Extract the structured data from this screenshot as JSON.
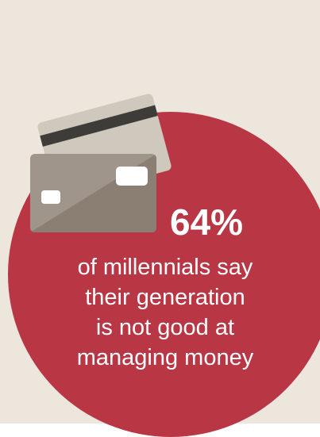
{
  "colors": {
    "background": "#ede6dc",
    "circle": "#b93645",
    "back_card": "#cfc8bc",
    "back_card_stripe": "#3d3c38",
    "front_card": "#a0958a",
    "front_card_shade": "#8a7f72",
    "text": "#ffffff"
  },
  "icons": [
    "credit-card-icon",
    "credit-card-icon"
  ],
  "stat": {
    "value": "64%"
  },
  "caption": {
    "lines": [
      "of millennials say",
      "their generation",
      "is not good at",
      "managing money"
    ]
  }
}
